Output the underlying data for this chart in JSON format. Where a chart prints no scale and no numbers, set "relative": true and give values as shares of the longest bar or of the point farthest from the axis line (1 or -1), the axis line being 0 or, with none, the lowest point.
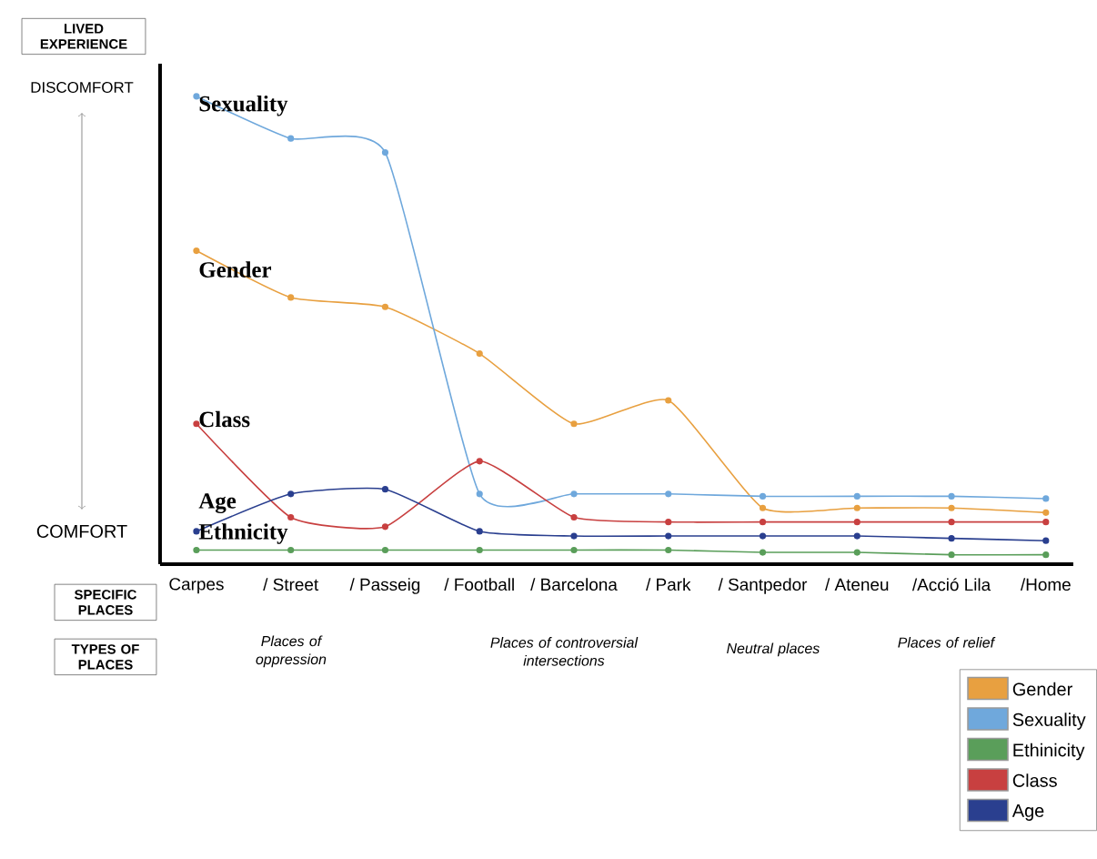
{
  "chart_data": {
    "type": "line",
    "relative": true,
    "ylabel": "LIVED EXPERIENCE",
    "xlabel": "SPECIFIC PLACES",
    "categories": [
      "Carpes",
      "/ Street",
      "/ Passeig",
      "/ Football",
      "/ Barcelona",
      "/ Park",
      "/ Santpedor",
      "/ Ateneu",
      "/Acció Lila",
      "/Home"
    ],
    "series": [
      {
        "name": "Gender",
        "color": "#e8a040",
        "values": [
          0.67,
          0.57,
          0.55,
          0.45,
          0.3,
          0.35,
          0.12,
          0.12,
          0.12,
          0.11
        ]
      },
      {
        "name": "Sexuality",
        "color": "#6fa8dc",
        "values": [
          1.0,
          0.91,
          0.88,
          0.15,
          0.15,
          0.15,
          0.145,
          0.145,
          0.145,
          0.14
        ]
      },
      {
        "name": "Ethinicity",
        "color": "#5a9e5a",
        "values": [
          0.03,
          0.03,
          0.03,
          0.03,
          0.03,
          0.03,
          0.025,
          0.025,
          0.02,
          0.02
        ]
      },
      {
        "name": "Class",
        "color": "#c84040",
        "values": [
          0.3,
          0.1,
          0.08,
          0.22,
          0.1,
          0.09,
          0.09,
          0.09,
          0.09,
          0.09
        ]
      },
      {
        "name": "Age",
        "color": "#2a3f8f",
        "values": [
          0.07,
          0.15,
          0.16,
          0.07,
          0.06,
          0.06,
          0.06,
          0.06,
          0.055,
          0.05
        ]
      }
    ],
    "annotations": [
      "DISCOMFORT",
      "COMFORT",
      "TYPES OF PLACES",
      "Places of oppression",
      "Places of controversial intersections",
      "Neutral places",
      "Places of relief",
      "Sexuality",
      "Gender",
      "Class",
      "Age",
      "Ethnicity"
    ],
    "legend": "bottom right",
    "marker": "circle",
    "grid": false
  }
}
